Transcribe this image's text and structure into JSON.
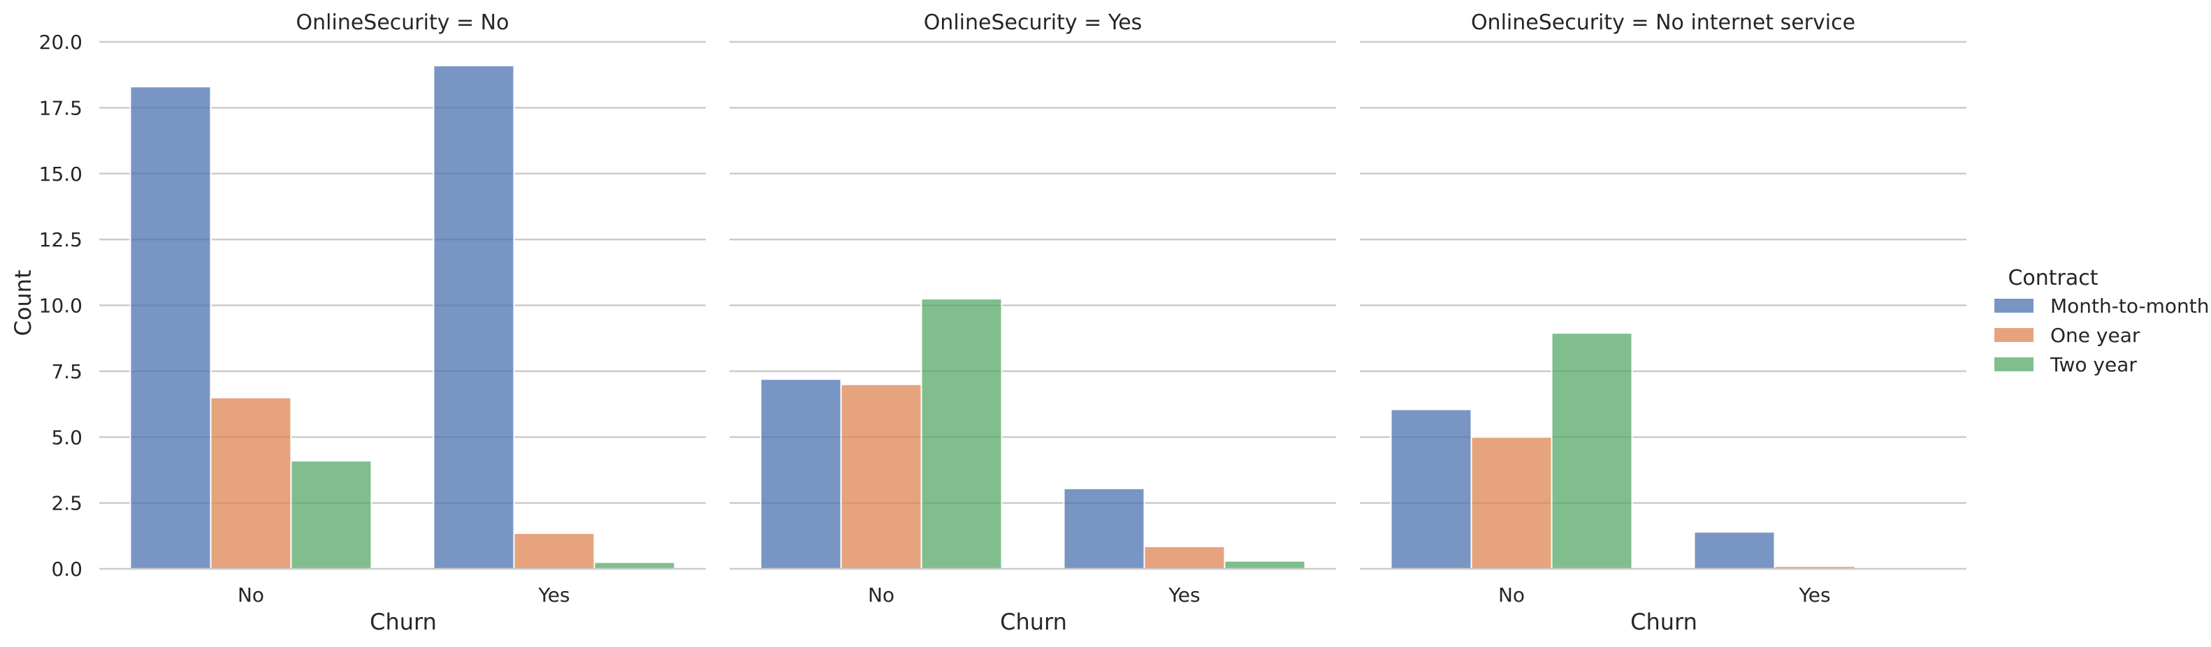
{
  "chart_data": {
    "type": "bar",
    "ylabel": "Count",
    "xlabel": "Churn",
    "ylim": [
      0,
      20
    ],
    "yticks": [
      "0.0",
      "2.5",
      "5.0",
      "7.5",
      "10.0",
      "12.5",
      "15.0",
      "17.5",
      "20.0"
    ],
    "ytick_values": [
      0,
      2.5,
      5,
      7.5,
      10,
      12.5,
      15,
      17.5,
      20
    ],
    "categories": [
      "No",
      "Yes"
    ],
    "grid": true,
    "legend": {
      "title": "Contract",
      "placement": "right",
      "entries": [
        "Month-to-month",
        "One year",
        "Two year"
      ],
      "colors": [
        "#4c72b0",
        "#dd8452",
        "#55a868"
      ]
    },
    "panels": [
      {
        "title": "OnlineSecurity = No",
        "series": [
          {
            "name": "Month-to-month",
            "values": [
              18.3,
              19.1
            ]
          },
          {
            "name": "One year",
            "values": [
              6.5,
              1.35
            ]
          },
          {
            "name": "Two year",
            "values": [
              4.1,
              0.25
            ]
          }
        ]
      },
      {
        "title": "OnlineSecurity = Yes",
        "series": [
          {
            "name": "Month-to-month",
            "values": [
              7.2,
              3.05
            ]
          },
          {
            "name": "One year",
            "values": [
              7.0,
              0.85
            ]
          },
          {
            "name": "Two year",
            "values": [
              10.25,
              0.3
            ]
          }
        ]
      },
      {
        "title": "OnlineSecurity = No internet service",
        "series": [
          {
            "name": "Month-to-month",
            "values": [
              6.05,
              1.4
            ]
          },
          {
            "name": "One year",
            "values": [
              5.0,
              0.1
            ]
          },
          {
            "name": "Two year",
            "values": [
              8.95,
              0.05
            ]
          }
        ]
      }
    ]
  }
}
